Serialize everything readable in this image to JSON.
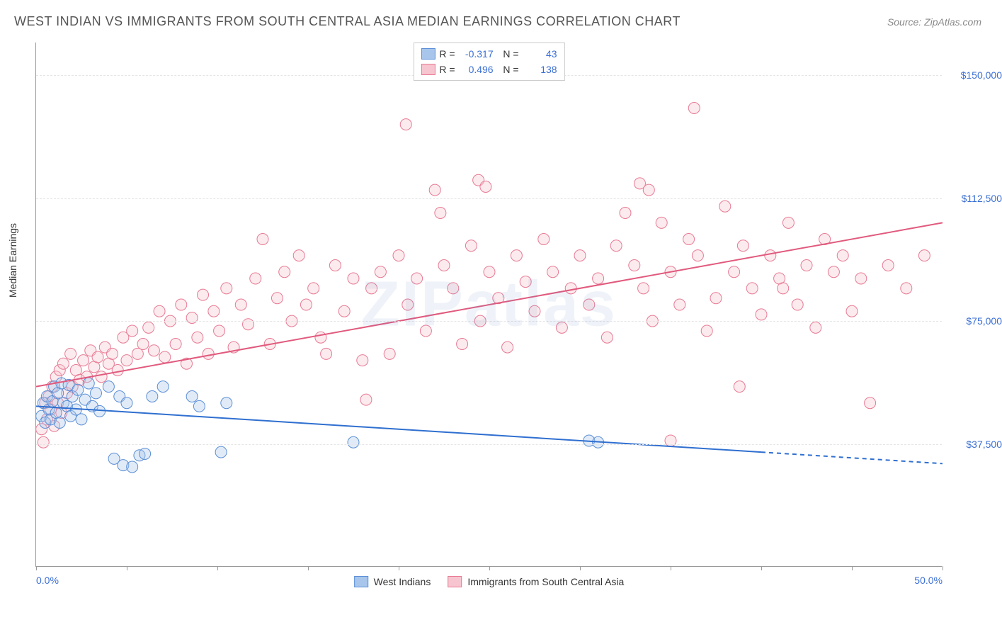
{
  "title": "WEST INDIAN VS IMMIGRANTS FROM SOUTH CENTRAL ASIA MEDIAN EARNINGS CORRELATION CHART",
  "source": "Source: ZipAtlas.com",
  "watermark": "ZIPatlas",
  "y_axis_label": "Median Earnings",
  "chart": {
    "type": "scatter",
    "xlim": [
      0,
      50
    ],
    "ylim": [
      0,
      160000
    ],
    "x_tick_positions": [
      0,
      5,
      10,
      15,
      20,
      25,
      30,
      35,
      40,
      45,
      50
    ],
    "x_tick_labels": {
      "0": "0.0%",
      "50": "50.0%"
    },
    "y_gridlines": [
      37500,
      75000,
      112500,
      150000
    ],
    "y_tick_labels": {
      "37500": "$37,500",
      "75000": "$75,000",
      "112500": "$112,500",
      "150000": "$150,000"
    },
    "grid_color": "#e5e5e5",
    "axis_color": "#999999",
    "label_color": "#3b6fd4",
    "background_color": "#ffffff",
    "marker_radius": 8,
    "marker_opacity": 0.35,
    "line_width": 2
  },
  "series": [
    {
      "id": "west_indians",
      "label": "West Indians",
      "color_fill": "#a8c5ec",
      "color_stroke": "#5b8fd6",
      "line_color": "#2f6fd0",
      "R": "-0.317",
      "N": "43",
      "trend_start": {
        "x": 0,
        "y": 49000
      },
      "trend_end": {
        "x": 40,
        "y": 35000
      },
      "trend_extrapolate_end": {
        "x": 50,
        "y": 31500
      },
      "points": [
        [
          0.3,
          46000
        ],
        [
          0.4,
          50000
        ],
        [
          0.5,
          44000
        ],
        [
          0.6,
          52000
        ],
        [
          0.7,
          48000
        ],
        [
          0.8,
          45000
        ],
        [
          0.9,
          50500
        ],
        [
          1.0,
          55000
        ],
        [
          1.1,
          47000
        ],
        [
          1.2,
          53000
        ],
        [
          1.3,
          44000
        ],
        [
          1.4,
          56000
        ],
        [
          1.5,
          50000
        ],
        [
          1.7,
          49000
        ],
        [
          1.8,
          55500
        ],
        [
          1.9,
          46000
        ],
        [
          2.0,
          52000
        ],
        [
          2.2,
          48000
        ],
        [
          2.3,
          54000
        ],
        [
          2.5,
          45000
        ],
        [
          2.7,
          51000
        ],
        [
          2.9,
          56000
        ],
        [
          3.1,
          49000
        ],
        [
          3.3,
          53000
        ],
        [
          3.5,
          47500
        ],
        [
          4.0,
          55000
        ],
        [
          4.3,
          33000
        ],
        [
          4.6,
          52000
        ],
        [
          4.8,
          31000
        ],
        [
          5.0,
          50000
        ],
        [
          5.3,
          30500
        ],
        [
          5.7,
          34000
        ],
        [
          6.0,
          34500
        ],
        [
          6.4,
          52000
        ],
        [
          7.0,
          55000
        ],
        [
          8.6,
          52000
        ],
        [
          9.0,
          49000
        ],
        [
          10.2,
          35000
        ],
        [
          10.5,
          50000
        ],
        [
          17.5,
          38000
        ],
        [
          30.5,
          38500
        ],
        [
          31.0,
          38000
        ]
      ]
    },
    {
      "id": "south_central_asia",
      "label": "Immigrants from South Central Asia",
      "color_fill": "#f7c5cf",
      "color_stroke": "#e87a94",
      "line_color": "#e15a7d",
      "R": "0.496",
      "N": "138",
      "trend_start": {
        "x": 0,
        "y": 55000
      },
      "trend_end": {
        "x": 50,
        "y": 105000
      },
      "points": [
        [
          0.3,
          42000
        ],
        [
          0.4,
          38000
        ],
        [
          0.5,
          50000
        ],
        [
          0.6,
          45000
        ],
        [
          0.7,
          52000
        ],
        [
          0.8,
          48000
        ],
        [
          0.9,
          55000
        ],
        [
          1.0,
          43000
        ],
        [
          1.1,
          58000
        ],
        [
          1.2,
          50000
        ],
        [
          1.3,
          60000
        ],
        [
          1.4,
          47000
        ],
        [
          1.5,
          62000
        ],
        [
          1.7,
          53000
        ],
        [
          1.9,
          65000
        ],
        [
          2.0,
          55000
        ],
        [
          2.2,
          60000
        ],
        [
          2.4,
          57000
        ],
        [
          2.6,
          63000
        ],
        [
          2.8,
          58000
        ],
        [
          3.0,
          66000
        ],
        [
          3.2,
          61000
        ],
        [
          3.4,
          64000
        ],
        [
          3.6,
          58000
        ],
        [
          3.8,
          67000
        ],
        [
          4.0,
          62000
        ],
        [
          4.2,
          65000
        ],
        [
          4.5,
          60000
        ],
        [
          4.8,
          70000
        ],
        [
          5.0,
          63000
        ],
        [
          5.3,
          72000
        ],
        [
          5.6,
          65000
        ],
        [
          5.9,
          68000
        ],
        [
          6.2,
          73000
        ],
        [
          6.5,
          66000
        ],
        [
          6.8,
          78000
        ],
        [
          7.1,
          64000
        ],
        [
          7.4,
          75000
        ],
        [
          7.7,
          68000
        ],
        [
          8.0,
          80000
        ],
        [
          8.3,
          62000
        ],
        [
          8.6,
          76000
        ],
        [
          8.9,
          70000
        ],
        [
          9.2,
          83000
        ],
        [
          9.5,
          65000
        ],
        [
          9.8,
          78000
        ],
        [
          10.1,
          72000
        ],
        [
          10.5,
          85000
        ],
        [
          10.9,
          67000
        ],
        [
          11.3,
          80000
        ],
        [
          11.7,
          74000
        ],
        [
          12.1,
          88000
        ],
        [
          12.5,
          100000
        ],
        [
          12.9,
          68000
        ],
        [
          13.3,
          82000
        ],
        [
          13.7,
          90000
        ],
        [
          14.1,
          75000
        ],
        [
          14.5,
          95000
        ],
        [
          14.9,
          80000
        ],
        [
          15.3,
          85000
        ],
        [
          15.7,
          70000
        ],
        [
          16.0,
          65000
        ],
        [
          16.5,
          92000
        ],
        [
          17.0,
          78000
        ],
        [
          17.5,
          88000
        ],
        [
          18.0,
          63000
        ],
        [
          18.2,
          51000
        ],
        [
          18.5,
          85000
        ],
        [
          19.0,
          90000
        ],
        [
          19.5,
          65000
        ],
        [
          20.0,
          95000
        ],
        [
          20.4,
          135000
        ],
        [
          20.5,
          80000
        ],
        [
          21.0,
          88000
        ],
        [
          21.5,
          72000
        ],
        [
          22.0,
          115000
        ],
        [
          22.3,
          108000
        ],
        [
          22.5,
          92000
        ],
        [
          23.0,
          85000
        ],
        [
          23.5,
          68000
        ],
        [
          24.0,
          98000
        ],
        [
          24.4,
          118000
        ],
        [
          24.5,
          75000
        ],
        [
          24.8,
          116000
        ],
        [
          25.0,
          90000
        ],
        [
          25.5,
          82000
        ],
        [
          26.0,
          67000
        ],
        [
          26.5,
          95000
        ],
        [
          27.0,
          87000
        ],
        [
          27.5,
          78000
        ],
        [
          28.0,
          100000
        ],
        [
          28.5,
          90000
        ],
        [
          29.0,
          73000
        ],
        [
          29.5,
          85000
        ],
        [
          30.0,
          95000
        ],
        [
          30.5,
          80000
        ],
        [
          31.0,
          88000
        ],
        [
          31.5,
          70000
        ],
        [
          32.0,
          98000
        ],
        [
          32.5,
          108000
        ],
        [
          33.0,
          92000
        ],
        [
          33.3,
          117000
        ],
        [
          33.5,
          85000
        ],
        [
          33.8,
          115000
        ],
        [
          34.0,
          75000
        ],
        [
          34.5,
          105000
        ],
        [
          35.0,
          90000
        ],
        [
          35.5,
          80000
        ],
        [
          36.0,
          100000
        ],
        [
          36.3,
          140000
        ],
        [
          36.5,
          95000
        ],
        [
          37.0,
          72000
        ],
        [
          37.5,
          82000
        ],
        [
          38.0,
          110000
        ],
        [
          38.5,
          90000
        ],
        [
          38.8,
          55000
        ],
        [
          39.0,
          98000
        ],
        [
          39.5,
          85000
        ],
        [
          40.0,
          77000
        ],
        [
          40.5,
          95000
        ],
        [
          41.0,
          88000
        ],
        [
          41.2,
          85000
        ],
        [
          41.5,
          105000
        ],
        [
          42.0,
          80000
        ],
        [
          42.5,
          92000
        ],
        [
          43.0,
          73000
        ],
        [
          43.5,
          100000
        ],
        [
          44.0,
          90000
        ],
        [
          44.5,
          95000
        ],
        [
          45.0,
          78000
        ],
        [
          45.5,
          88000
        ],
        [
          46.0,
          50000
        ],
        [
          47.0,
          92000
        ],
        [
          48.0,
          85000
        ],
        [
          49.0,
          95000
        ],
        [
          35.0,
          38500
        ]
      ]
    }
  ]
}
